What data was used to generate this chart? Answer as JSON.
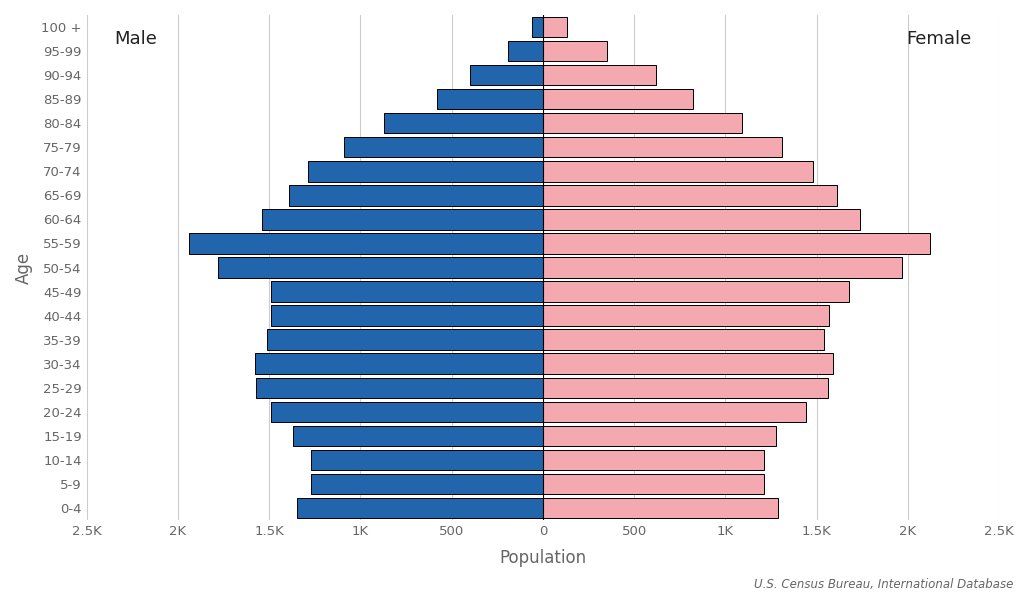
{
  "age_groups": [
    "0-4",
    "5-9",
    "10-14",
    "15-19",
    "20-24",
    "25-29",
    "30-34",
    "35-39",
    "40-44",
    "45-49",
    "50-54",
    "55-59",
    "60-64",
    "65-69",
    "70-74",
    "75-79",
    "80-84",
    "85-89",
    "90-94",
    "95-99",
    "100 +"
  ],
  "male": [
    1350,
    1270,
    1270,
    1370,
    1490,
    1570,
    1580,
    1510,
    1490,
    1490,
    1780,
    1940,
    1540,
    1390,
    1290,
    1090,
    870,
    580,
    400,
    190,
    60
  ],
  "female": [
    1290,
    1210,
    1210,
    1280,
    1440,
    1560,
    1590,
    1540,
    1570,
    1680,
    1970,
    2120,
    1740,
    1610,
    1480,
    1310,
    1090,
    820,
    620,
    350,
    130
  ],
  "male_color": "#2166ac",
  "female_color": "#f4a9b0",
  "male_edgecolor": "#000000",
  "female_edgecolor": "#000000",
  "xlabel": "Population",
  "ylabel": "Age",
  "xlim": [
    -2500,
    2500
  ],
  "xtick_labels": [
    "2.5K",
    "2K",
    "1.5K",
    "1K",
    "500",
    "0",
    "500",
    "1K",
    "1.5K",
    "2K",
    "2.5K"
  ],
  "xtick_values": [
    -2500,
    -2000,
    -1500,
    -1000,
    -500,
    0,
    500,
    1000,
    1500,
    2000,
    2500
  ],
  "background_color": "#ffffff",
  "grid_color": "#cccccc",
  "text_color": "#666666",
  "male_label": "Male",
  "female_label": "Female",
  "annotation": "U.S. Census Bureau, International Database",
  "bar_height": 0.85,
  "linewidth": 0.7
}
